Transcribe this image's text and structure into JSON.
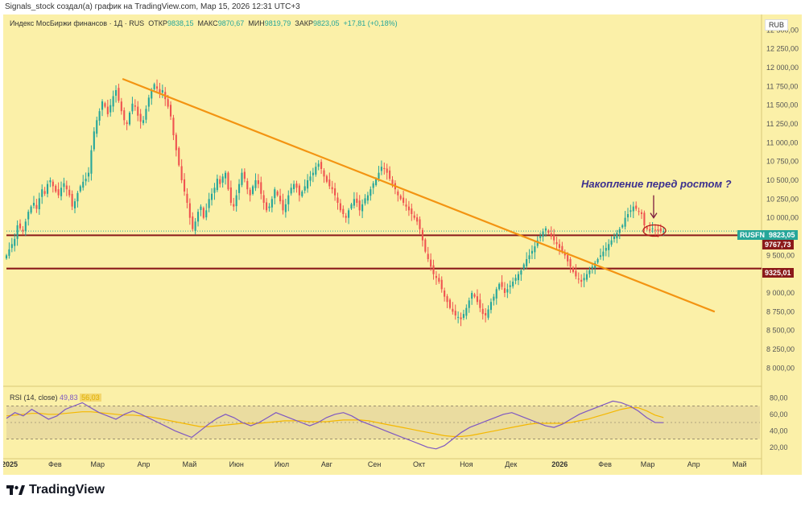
{
  "header": {
    "attribution": "Signals_stock создал(а) график на TradingView.com, Мар 15, 2026 12:31 UTC+3"
  },
  "legend": {
    "symbol": "Индекс МосБиржи финансов · 1Д · RUS",
    "open_label": "ОТКР",
    "open": "9838,15",
    "high_label": "МАКС",
    "high": "9870,67",
    "low_label": "МИН",
    "low": "9819,79",
    "close_label": "ЗАКР",
    "close": "9823,05",
    "change": "+17,81 (+0,18%)"
  },
  "currency": "RUB",
  "annotation": "Накопление перед ростом ?",
  "price_labels": {
    "ticker": "RUSFN",
    "last": "9823,05",
    "level_upper": "9767,73",
    "level_lower": "9325,01"
  },
  "rsi_legend": {
    "name": "RSI (14, close)",
    "value": "49,83",
    "ma": "56,03"
  },
  "footer": {
    "brand": "TradingView"
  },
  "colors": {
    "up": "#26a69a",
    "down": "#ef5350",
    "trendline": "#f39412",
    "level": "#8b1a1a",
    "rsi": "#7e57c2",
    "rsi_ma": "#f5b800",
    "background": "#fbf0a8"
  },
  "chart_data": [
    {
      "type": "candlestick",
      "title": "Индекс МосБиржи финансов · 1Д · RUS",
      "ylim": [
        7800,
        12600
      ],
      "y_ticks": [
        "12 500,00",
        "12 250,00",
        "12 000,00",
        "11 750,00",
        "11 500,00",
        "11 250,00",
        "11 000,00",
        "10 750,00",
        "10 500,00",
        "10 250,00",
        "10 000,00",
        "9 500,00",
        "9 000,00",
        "8 750,00",
        "8 500,00",
        "8 250,00",
        "8 000,00"
      ],
      "y_tick_values": [
        12500,
        12250,
        12000,
        11750,
        11500,
        11250,
        11000,
        10750,
        10500,
        10250,
        10000,
        9500,
        9000,
        8750,
        8500,
        8250,
        8000
      ],
      "x_ticks": [
        "2025",
        "Фев",
        "Мар",
        "Апр",
        "Май",
        "Июн",
        "Июл",
        "Авг",
        "Сен",
        "Окт",
        "Ноя",
        "Дек",
        "2026",
        "Фев",
        "Мар",
        "Апр",
        "Май"
      ],
      "x_tick_days": [
        0,
        31,
        59,
        90,
        120,
        151,
        181,
        212,
        243,
        273,
        304,
        334,
        365,
        396,
        424,
        455,
        485
      ],
      "days_total": 500,
      "closes": [
        9500,
        9580,
        9650,
        9720,
        9900,
        9860,
        9820,
        9950,
        10080,
        10150,
        10200,
        10120,
        10260,
        10380,
        10320,
        10450,
        10500,
        10420,
        10350,
        10300,
        10400,
        10460,
        10380,
        10300,
        10150,
        10220,
        10330,
        10420,
        10480,
        10520,
        10600,
        10900,
        11150,
        11300,
        11420,
        11550,
        11480,
        11380,
        11500,
        11620,
        11700,
        11560,
        11420,
        11300,
        11250,
        11400,
        11520,
        11480,
        11360,
        11280,
        11300,
        11450,
        11600,
        11700,
        11780,
        11720,
        11650,
        11700,
        11580,
        11480,
        11350,
        11100,
        10900,
        10700,
        10500,
        10350,
        10200,
        10000,
        9850,
        9950,
        10080,
        10150,
        10000,
        10100,
        10250,
        10320,
        10400,
        10520,
        10450,
        10550,
        10600,
        10380,
        10200,
        10150,
        10300,
        10450,
        10600,
        10520,
        10380,
        10300,
        10420,
        10500,
        10450,
        10320,
        10200,
        10100,
        10150,
        10250,
        10380,
        10300,
        10220,
        10100,
        10180,
        10300,
        10400,
        10450,
        10400,
        10300,
        10350,
        10420,
        10500,
        10550,
        10600,
        10680,
        10720,
        10650,
        10550,
        10480,
        10420,
        10380,
        10300,
        10200,
        10100,
        10050,
        10000,
        10100,
        10180,
        10250,
        10200,
        10100,
        10180,
        10260,
        10300,
        10380,
        10460,
        10520,
        10600,
        10680,
        10650,
        10600,
        10520,
        10450,
        10380,
        10300,
        10250,
        10200,
        10150,
        10100,
        10050,
        10000,
        9950,
        9850,
        9700,
        9550,
        9450,
        9350,
        9250,
        9200,
        9150,
        9050,
        8950,
        8880,
        8800,
        8750,
        8700,
        8680,
        8650,
        8720,
        8800,
        8900,
        9000,
        8950,
        8880,
        8800,
        8720,
        8700,
        8780,
        8880,
        8950,
        9050,
        9120,
        9080,
        9000,
        9050,
        9100,
        9150,
        9200,
        9250,
        9300,
        9380,
        9450,
        9500,
        9560,
        9620,
        9700,
        9760,
        9820,
        9860,
        9800,
        9750,
        9700,
        9650,
        9600,
        9550,
        9500,
        9420,
        9350,
        9280,
        9220,
        9180,
        9150,
        9200,
        9250,
        9300,
        9350,
        9400,
        9450,
        9500,
        9550,
        9600,
        9650,
        9700,
        9750,
        9800,
        9850,
        9900,
        10000,
        10050,
        10100,
        10150,
        10120,
        10080,
        10050,
        9900,
        9850,
        9830,
        9860,
        9840,
        9830,
        9820,
        9823
      ]
    },
    {
      "type": "line",
      "title": "RSI (14, close)",
      "ylim": [
        10,
        90
      ],
      "y_ticks": [
        "80,00",
        "60,00",
        "40,00",
        "20,00"
      ],
      "y_tick_values": [
        80,
        60,
        40,
        20
      ],
      "band": [
        30,
        70
      ],
      "mid": 50,
      "rsi": [
        55,
        62,
        58,
        66,
        60,
        54,
        58,
        66,
        70,
        74,
        68,
        62,
        58,
        54,
        60,
        64,
        60,
        55,
        50,
        45,
        40,
        36,
        32,
        40,
        48,
        55,
        60,
        56,
        50,
        46,
        50,
        56,
        62,
        58,
        54,
        50,
        46,
        50,
        56,
        60,
        62,
        58,
        52,
        48,
        44,
        40,
        36,
        32,
        28,
        24,
        20,
        18,
        22,
        30,
        38,
        44,
        48,
        52,
        56,
        60,
        62,
        58,
        54,
        50,
        46,
        44,
        48,
        54,
        60,
        64,
        68,
        72,
        76,
        74,
        70,
        64,
        56,
        50,
        49.83
      ],
      "rsi_ma": [
        58,
        59,
        60,
        61,
        61,
        60,
        60,
        61,
        62,
        63,
        63,
        62,
        61,
        60,
        59,
        59,
        58,
        57,
        55,
        53,
        51,
        49,
        47,
        45,
        45,
        46,
        47,
        48,
        49,
        49,
        49,
        50,
        51,
        52,
        52,
        52,
        51,
        51,
        51,
        52,
        53,
        53,
        53,
        52,
        50,
        48,
        46,
        44,
        42,
        40,
        38,
        36,
        34,
        33,
        33,
        34,
        36,
        38,
        40,
        42,
        44,
        46,
        48,
        49,
        49,
        49,
        49,
        50,
        52,
        54,
        57,
        60,
        63,
        66,
        68,
        68,
        64,
        59,
        56.03
      ]
    }
  ]
}
